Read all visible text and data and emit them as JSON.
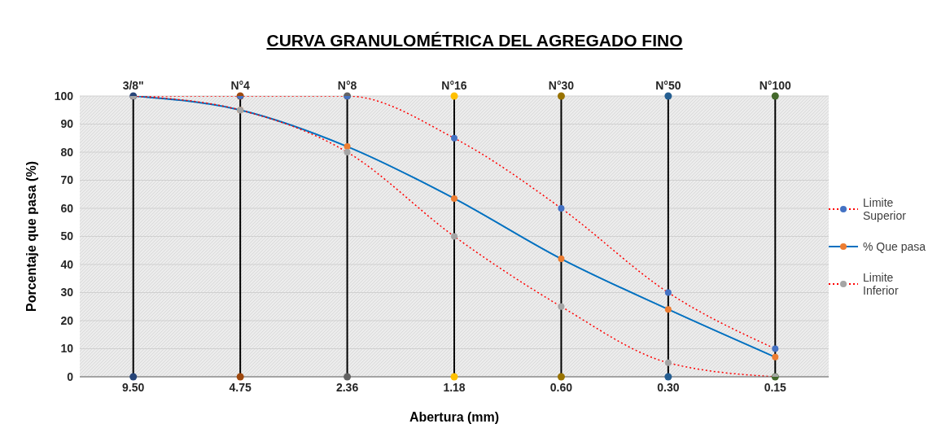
{
  "chart_data": {
    "type": "line",
    "title": "CURVA GRANULOMÉTRICA DEL AGREGADO FINO",
    "xlabel": "Abertura (mm)",
    "ylabel": "Porcentaje que pasa (%)",
    "categories": [
      "9.50",
      "4.75",
      "2.36",
      "1.18",
      "0.60",
      "0.30",
      "0.15"
    ],
    "series": [
      {
        "name": "Limite Superior",
        "color": "#ff0000",
        "line_style": "dotted",
        "marker": "circle",
        "colors": [
          "#4472c4",
          "#4472c4",
          "#4472c4",
          "#4472c4",
          "#4472c4",
          "#4472c4",
          "#4472c4"
        ],
        "values": [
          100,
          100,
          100,
          85,
          60,
          30,
          10
        ]
      },
      {
        "name": "% Que pasa",
        "color": "#0070c0",
        "line_style": "solid",
        "marker": "circle",
        "colors": [
          "#ed7d31",
          "#ed7d31",
          "#ed7d31",
          "#ed7d31",
          "#ed7d31",
          "#ed7d31",
          "#ed7d31"
        ],
        "values": [
          100,
          95,
          82,
          63.5,
          42,
          24,
          7
        ]
      },
      {
        "name": "Limite Inferior",
        "color": "#ff0000",
        "line_style": "dotted",
        "marker": "circle",
        "colors": [
          "#a5a5a5",
          "#a5a5a5",
          "#a5a5a5",
          "#a5a5a5",
          "#a5a5a5",
          "#a5a5a5",
          "#a5a5a5"
        ],
        "values": [
          100,
          95,
          80,
          50,
          25,
          5,
          0
        ]
      },
      {
        "type": "scatter",
        "x": [
          "9.50",
          "9.50",
          "4.75",
          "4.75",
          "2.36",
          "2.36",
          "1.18",
          "1.18",
          "0.60",
          "0.60",
          "0.30",
          "0.30",
          "0.15",
          "0.15"
        ],
        "values": [
          0,
          100,
          0,
          100,
          0,
          100,
          0,
          100,
          0,
          100,
          0,
          100,
          0,
          100
        ],
        "colors": [
          "#264478",
          "#264478",
          "#9e480e",
          "#9e480e",
          "#636363",
          "#636363",
          "#ffc000",
          "#ffc000",
          "#997300",
          "#997300",
          "#255e91",
          "#255e91",
          "#43682b",
          "#43682b"
        ]
      }
    ],
    "ref_lines": [
      {
        "axis": "x",
        "value": "9.50",
        "color": "#000000"
      },
      {
        "axis": "x",
        "value": "4.75",
        "color": "#000000"
      },
      {
        "axis": "x",
        "value": "2.36",
        "color": "#000000"
      },
      {
        "axis": "x",
        "value": "1.18",
        "color": "#000000"
      },
      {
        "axis": "x",
        "value": "0.60",
        "color": "#000000"
      },
      {
        "axis": "x",
        "value": "0.30",
        "color": "#000000"
      },
      {
        "axis": "x",
        "value": "0.15",
        "color": "#000000"
      }
    ],
    "annotations": [
      "3/8\"",
      "N°4",
      "N°8",
      "N°16",
      "N°30",
      "N°50",
      "N°100"
    ],
    "ylim": [
      0,
      100
    ],
    "yticks": [
      0,
      10,
      20,
      30,
      40,
      50,
      60,
      70,
      80,
      90,
      100
    ],
    "grid": "y",
    "legend": "right"
  }
}
